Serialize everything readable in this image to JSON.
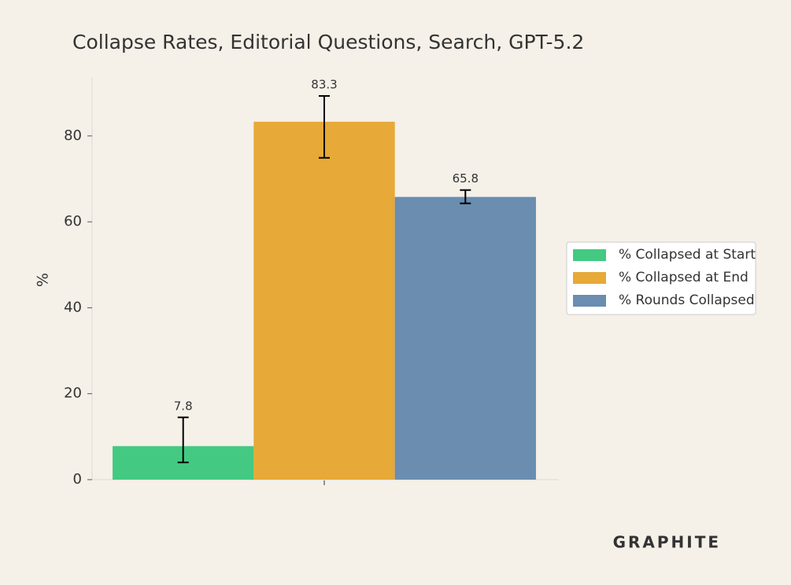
{
  "chart_data": {
    "type": "bar",
    "title": "Collapse Rates, Editorial Questions, Search, GPT-5.2",
    "y_label": "%",
    "categories": [
      null
    ],
    "series": [
      {
        "name": "% Collapsed at Start",
        "color": "#43c982",
        "values": [
          7.8
        ],
        "error_lower": [
          3.8
        ],
        "error_upper": [
          6.7
        ]
      },
      {
        "name": "% Collapsed at End",
        "color": "#e7a937",
        "values": [
          83.3
        ],
        "error_lower": [
          8.4
        ],
        "error_upper": [
          6.0
        ]
      },
      {
        "name": "% Rounds Collapsed",
        "color": "#6a8db0",
        "values": [
          65.8
        ],
        "error_lower": [
          1.5
        ],
        "error_upper": [
          1.6
        ]
      }
    ],
    "ylim": [
      0,
      93.7
    ],
    "yticks": [
      0,
      20,
      40,
      60,
      80
    ],
    "legend": "right",
    "logo": "GRAPHITE"
  }
}
